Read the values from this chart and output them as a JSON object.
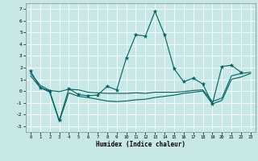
{
  "xlabel": "Humidex (Indice chaleur)",
  "bg_color": "#c8e8e8",
  "grid_color": "#ffffff",
  "line_color": "#006060",
  "xlim": [
    -0.5,
    23.5
  ],
  "ylim": [
    -3.5,
    7.5
  ],
  "yticks": [
    -3,
    -2,
    -1,
    0,
    1,
    2,
    3,
    4,
    5,
    6,
    7
  ],
  "xticks": [
    0,
    1,
    2,
    3,
    4,
    5,
    6,
    7,
    8,
    9,
    10,
    11,
    12,
    13,
    14,
    15,
    16,
    17,
    18,
    19,
    20,
    21,
    22,
    23
  ],
  "line1_x": [
    0,
    1,
    2,
    3,
    4,
    5,
    6,
    7,
    8,
    9,
    10,
    11,
    12,
    13,
    14,
    15,
    16,
    17,
    18,
    19,
    20,
    21,
    22,
    23
  ],
  "line1_y": [
    1.7,
    0.3,
    0.0,
    -2.5,
    0.2,
    -0.3,
    -0.4,
    -0.35,
    0.4,
    0.1,
    2.8,
    4.8,
    4.7,
    6.8,
    4.8,
    1.9,
    0.8,
    1.1,
    0.6,
    -1.1,
    2.1,
    2.2,
    1.6,
    null
  ],
  "line2_x": [
    0,
    1,
    2,
    3,
    4,
    5,
    6,
    7,
    8,
    9,
    10,
    11,
    12,
    13,
    14,
    15,
    16,
    17,
    18,
    19,
    20,
    21,
    22,
    23
  ],
  "line2_y": [
    1.5,
    0.5,
    0.05,
    -0.05,
    0.15,
    0.1,
    -0.1,
    -0.15,
    -0.2,
    -0.2,
    -0.2,
    -0.15,
    -0.2,
    -0.1,
    -0.1,
    -0.1,
    -0.05,
    0.05,
    0.1,
    -0.9,
    -0.6,
    1.3,
    1.5,
    1.6
  ],
  "line3_x": [
    0,
    1,
    2,
    3,
    4,
    5,
    6,
    7,
    8,
    9,
    10,
    11,
    12,
    13,
    14,
    15,
    16,
    17,
    18,
    19,
    20,
    21,
    22,
    23
  ],
  "line3_y": [
    1.3,
    0.3,
    -0.1,
    -2.6,
    -0.15,
    -0.45,
    -0.55,
    -0.7,
    -0.85,
    -0.9,
    -0.85,
    -0.75,
    -0.7,
    -0.55,
    -0.45,
    -0.35,
    -0.2,
    -0.1,
    0.0,
    -1.1,
    -0.8,
    1.0,
    1.2,
    1.5
  ]
}
